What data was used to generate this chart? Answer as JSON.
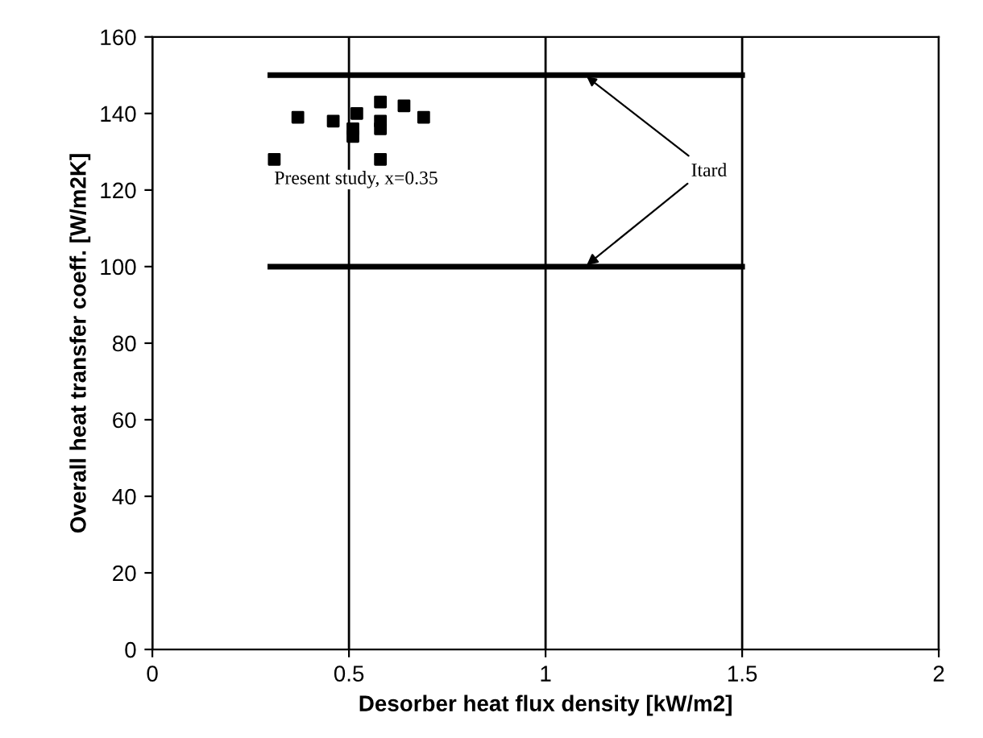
{
  "chart_data": {
    "type": "scatter",
    "xlabel": "Desorber heat flux density [kW/m2]",
    "ylabel": "Overall heat transfer coeff. [W/m2K]",
    "series": [
      {
        "marker": "square",
        "color": "#000000",
        "x": [
          0.31,
          0.37,
          0.46,
          0.51,
          0.51,
          0.52,
          0.58,
          0.58,
          0.58,
          0.58,
          0.64,
          0.69
        ],
        "values": [
          128,
          139,
          138,
          136,
          134,
          140,
          143,
          138,
          136,
          128,
          142,
          139
        ]
      },
      {
        "type": "line",
        "marker": "none",
        "x": [
          0.3,
          1.5
        ],
        "values": [
          150,
          150
        ],
        "color": "#000000"
      },
      {
        "type": "line",
        "marker": "none",
        "x": [
          0.3,
          1.5
        ],
        "values": [
          100,
          100
        ],
        "color": "#000000"
      }
    ],
    "annotations": [
      "Present study, x=0.35",
      {
        "text": "Itard",
        "x": 1.1,
        "y": 150
      }
    ],
    "xlim": [
      0,
      2
    ],
    "xticks": [
      0,
      0.5,
      1,
      1.5,
      2
    ],
    "ylim": [
      0,
      160
    ],
    "yticks": [
      0,
      20,
      40,
      60,
      80,
      100,
      120,
      140,
      160
    ],
    "grid": "x"
  }
}
